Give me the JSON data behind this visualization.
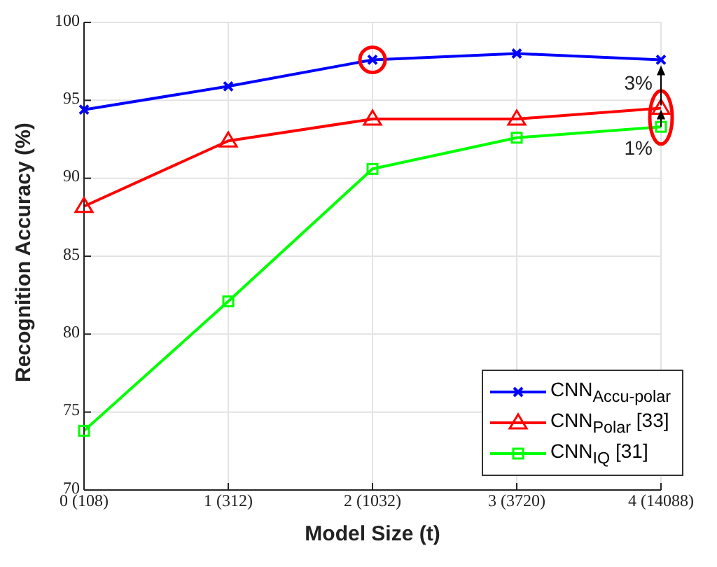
{
  "chart_data": {
    "type": "line",
    "xlabel": "Model Size (t)",
    "ylabel": "Recognition Accuracy (%)",
    "categories": [
      "0 (108)",
      "1 (312)",
      "2 (1032)",
      "3 (3720)",
      "4 (14088)"
    ],
    "series": [
      {
        "name": "CNN$_{Accu-polar}$",
        "color": "#0000ff",
        "marker": "cross",
        "values": [
          94.4,
          95.9,
          97.6,
          98.0,
          97.6
        ]
      },
      {
        "name": "CNN$_{Polar}$ [33]",
        "color": "#ff0000",
        "marker": "triangle",
        "values": [
          88.2,
          92.4,
          93.8,
          93.8,
          94.5
        ]
      },
      {
        "name": "CNN$_{IQ}$ [31]",
        "color": "#00ff00",
        "marker": "square",
        "values": [
          73.8,
          82.1,
          90.6,
          92.6,
          93.3
        ]
      }
    ],
    "ylim": [
      70,
      100
    ],
    "yticks": [
      70,
      75,
      80,
      85,
      90,
      95,
      100
    ],
    "grid": true,
    "legend": "bottom right",
    "annotations": [
      "3%",
      "1%"
    ]
  }
}
